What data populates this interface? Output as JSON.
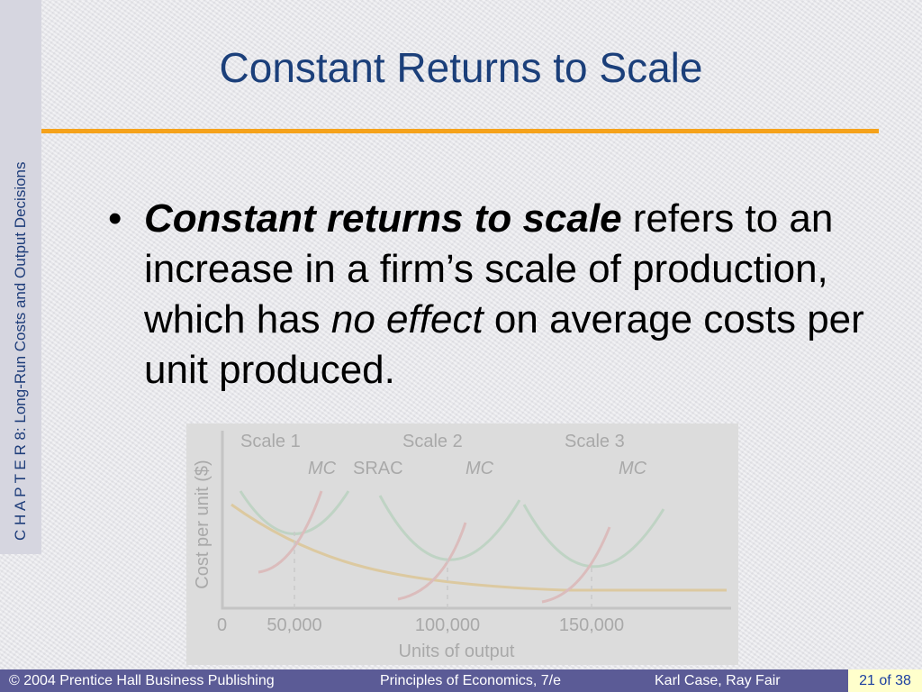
{
  "sidebar": {
    "text": "C H A P T E R  8:  Long-Run Costs and Output Decisions"
  },
  "title": "Constant Returns to Scale",
  "bullet": {
    "marker": "•",
    "term": "Constant returns to scale",
    "t1": " refers to an increase in a firm’s scale of production, which has ",
    "em": "no effect",
    "t2": " on average costs per unit produced."
  },
  "background_chart": {
    "ylabel": "Cost per unit ($)",
    "xlabel": "Units of output",
    "ticks": [
      "0",
      "50,000",
      "100,000",
      "150,000"
    ],
    "labels": {
      "scale1": "Scale 1",
      "scale2": "Scale 2",
      "scale3": "Scale 3",
      "mc1": "MC",
      "srac": "SRAC",
      "mc2": "MC",
      "mc3": "MC"
    }
  },
  "footer": {
    "copyright": "© 2004 Prentice Hall Business Publishing",
    "book": "Principles of Economics, 7/e",
    "authors": "Karl Case, Ray Fair",
    "page": "21 of 38"
  },
  "colors": {
    "title": "#1b3f7a",
    "rule": "#f5a21b",
    "footer": "#5b5b96",
    "page_box": "#ffffcc"
  }
}
